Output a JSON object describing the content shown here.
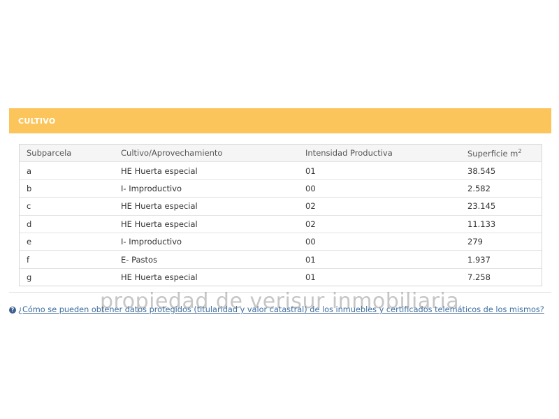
{
  "section": {
    "title": "CULTIVO"
  },
  "table": {
    "headers": {
      "subparcela": "Subparcela",
      "cultivo": "Cultivo/Aprovechamiento",
      "intensidad": "Intensidad Productiva",
      "superficie": "Superficie m",
      "superficie_sup": "2"
    },
    "rows": [
      {
        "subparcela": "a",
        "cultivo": "HE Huerta especial",
        "intensidad": "01",
        "superficie": "38.545"
      },
      {
        "subparcela": "b",
        "cultivo": "I- Improductivo",
        "intensidad": "00",
        "superficie": "2.582"
      },
      {
        "subparcela": "c",
        "cultivo": "HE Huerta especial",
        "intensidad": "02",
        "superficie": "23.145"
      },
      {
        "subparcela": "d",
        "cultivo": "HE Huerta especial",
        "intensidad": "02",
        "superficie": "11.133"
      },
      {
        "subparcela": "e",
        "cultivo": "I- Improductivo",
        "intensidad": "00",
        "superficie": "279"
      },
      {
        "subparcela": "f",
        "cultivo": "E- Pastos",
        "intensidad": "01",
        "superficie": "1.937"
      },
      {
        "subparcela": "g",
        "cultivo": "HE Huerta especial",
        "intensidad": "01",
        "superficie": "7.258"
      }
    ]
  },
  "help": {
    "icon": "help-circle-icon",
    "link_text": "¿Cómo se pueden obtener datos protegidos (titularidad y valor catastral) de los inmuebles y certificados telemáticos de los mismos?"
  },
  "watermark": {
    "text": "propiedad de verisur inmobiliaria"
  },
  "colors": {
    "header_bar": "#fcc55b",
    "link": "#3d6c9e"
  }
}
